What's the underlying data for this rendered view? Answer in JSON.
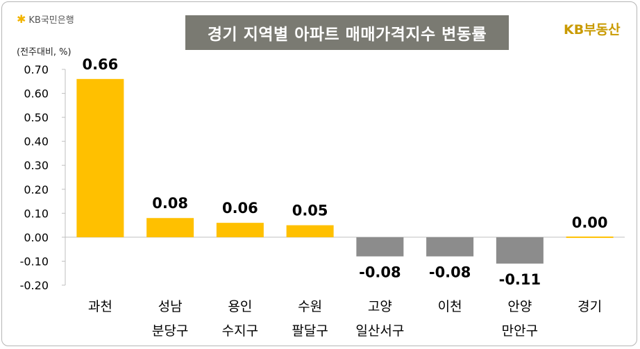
{
  "header": {
    "bank_logo_text": "KB국민은행",
    "bank_logo_icon": "kb-star-icon",
    "title": "경기 지역별 아파트 매매가격지수 변동률",
    "brand_text": "KB부동산",
    "unit_label": "(전주대비, %)"
  },
  "colors": {
    "positive": "#FFC000",
    "negative": "#8C8C8C",
    "title_bg": "#7A7A72",
    "brand": "#C99A00"
  },
  "chart_data": {
    "type": "bar",
    "title": "경기 지역별 아파트 매매가격지수 변동률",
    "ylabel": "(전주대비, %)",
    "ylim": [
      -0.2,
      0.7
    ],
    "yticks": [
      "0.70",
      "0.60",
      "0.50",
      "0.40",
      "0.30",
      "0.20",
      "0.10",
      "0.00",
      "-0.10",
      "-0.20"
    ],
    "categories": [
      [
        "과천"
      ],
      [
        "성남",
        "분당구"
      ],
      [
        "용인",
        "수지구"
      ],
      [
        "수원",
        "팔달구"
      ],
      [
        "고양",
        "일산서구"
      ],
      [
        "이천"
      ],
      [
        "안양",
        "만안구"
      ],
      [
        "경기"
      ]
    ],
    "values": [
      0.66,
      0.08,
      0.06,
      0.05,
      -0.08,
      -0.08,
      -0.11,
      0.0
    ],
    "value_labels": [
      "0.66",
      "0.08",
      "0.06",
      "0.05",
      "-0.08",
      "-0.08",
      "-0.11",
      "0.00"
    ],
    "grid": false,
    "legend": "none"
  }
}
